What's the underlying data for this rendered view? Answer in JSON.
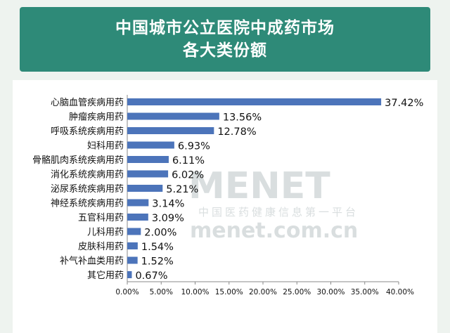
{
  "header": {
    "title_line1": "中国城市公立医院中成药市场",
    "title_line2": "各大类份额"
  },
  "watermark": {
    "brand": "MENET",
    "slogan": "中国医药健康信息第一平台",
    "url": "menet.com.cn"
  },
  "colors": {
    "banner": "#2e8a78",
    "bar": "#4c74ba",
    "background": "#eef3ef"
  },
  "chart_data": {
    "type": "bar",
    "orientation": "horizontal",
    "categories": [
      "心脑血管疾病用药",
      "肿瘤疾病用药",
      "呼吸系统疾病用药",
      "妇科用药",
      "骨骼肌肉系统疾病用药",
      "消化系统疾病用药",
      "泌尿系统疾病用药",
      "神经系统疾病用药",
      "五官科用药",
      "儿科用药",
      "皮肤科用药",
      "补气补血类用药",
      "其它用药"
    ],
    "values": [
      37.42,
      13.56,
      12.78,
      6.93,
      6.11,
      6.02,
      5.21,
      3.14,
      3.09,
      2.0,
      1.54,
      1.52,
      0.67
    ],
    "value_labels": [
      "37.42%",
      "13.56%",
      "12.78%",
      "6.93%",
      "6.11%",
      "6.02%",
      "5.21%",
      "3.14%",
      "3.09%",
      "2.00%",
      "1.54%",
      "1.52%",
      "0.67%"
    ],
    "x_ticks": [
      "0.00%",
      "5.00%",
      "10.00%",
      "15.00%",
      "20.00%",
      "25.00%",
      "30.00%",
      "35.00%",
      "40.00%"
    ],
    "xlim": [
      0,
      40
    ],
    "grid": false,
    "legend": "none"
  }
}
